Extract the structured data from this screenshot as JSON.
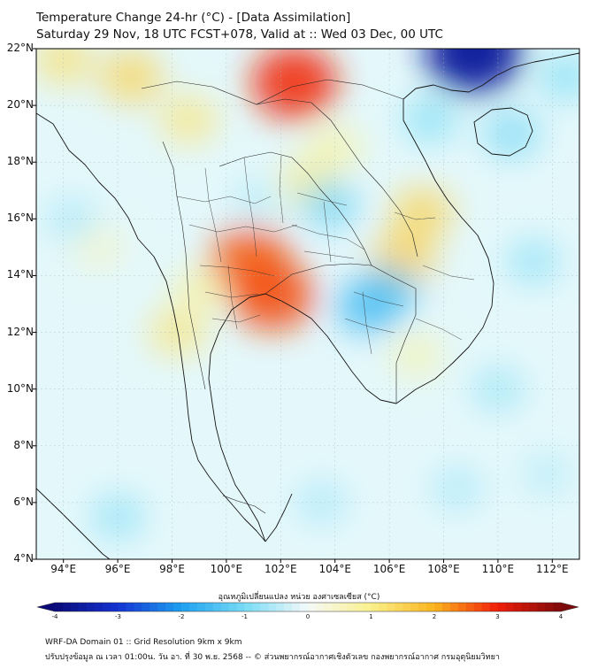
{
  "header": {
    "title_line1": "Temperature Change 24-hr (°C) - [Data Assimilation]",
    "title_line2": "Saturday 29 Nov, 18 UTC FCST+078, Valid at :: Wed 03 Dec, 00 UTC"
  },
  "map": {
    "lat_labels": [
      {
        "value": 22,
        "label": "22°N"
      },
      {
        "value": 20,
        "label": "20°N"
      },
      {
        "value": 18,
        "label": "18°N"
      },
      {
        "value": 16,
        "label": "16°N"
      },
      {
        "value": 14,
        "label": "14°N"
      },
      {
        "value": 12,
        "label": "12°N"
      },
      {
        "value": 10,
        "label": "10°N"
      },
      {
        "value": 8,
        "label": "8°N"
      },
      {
        "value": 6,
        "label": "6°N"
      },
      {
        "value": 4,
        "label": "4°N"
      }
    ],
    "lon_labels": [
      {
        "value": 94,
        "label": "94°E"
      },
      {
        "value": 96,
        "label": "96°E"
      },
      {
        "value": 98,
        "label": "98°E"
      },
      {
        "value": 100,
        "label": "100°E"
      },
      {
        "value": 102,
        "label": "102°E"
      },
      {
        "value": 104,
        "label": "104°E"
      },
      {
        "value": 106,
        "label": "106°E"
      },
      {
        "value": 108,
        "label": "108°E"
      },
      {
        "value": 110,
        "label": "110°E"
      },
      {
        "value": 112,
        "label": "112°E"
      }
    ],
    "lon_range": [
      93,
      113
    ],
    "lat_range": [
      4,
      22
    ],
    "gridlines": true,
    "field_anomalies": [
      {
        "lon": 102.5,
        "lat": 20.8,
        "value": 2.9
      },
      {
        "lon": 100.9,
        "lat": 14.5,
        "value": 2.6
      },
      {
        "lon": 101.7,
        "lat": 13.3,
        "value": 2.7
      },
      {
        "lon": 96.5,
        "lat": 21.0,
        "value": 1.5
      },
      {
        "lon": 98.6,
        "lat": 19.5,
        "value": 1.2
      },
      {
        "lon": 103.0,
        "lat": 17.3,
        "value": 1.1
      },
      {
        "lon": 98.2,
        "lat": 12.0,
        "value": 1.2
      },
      {
        "lon": 99.0,
        "lat": 13.5,
        "value": 0.9
      },
      {
        "lon": 94.0,
        "lat": 21.6,
        "value": 1.3
      },
      {
        "lon": 95.3,
        "lat": 15.0,
        "value": 0.6
      },
      {
        "lon": 106.5,
        "lat": 14.6,
        "value": 1.6
      },
      {
        "lon": 107.2,
        "lat": 16.2,
        "value": 1.5
      },
      {
        "lon": 107.0,
        "lat": 11.2,
        "value": 0.8
      },
      {
        "lon": 104.0,
        "lat": 18.5,
        "value": 0.9
      },
      {
        "lon": 109.1,
        "lat": 21.9,
        "value": -3.6
      },
      {
        "lon": 110.5,
        "lat": 19.0,
        "value": -1.1
      },
      {
        "lon": 107.5,
        "lat": 19.5,
        "value": -1.0
      },
      {
        "lon": 103.8,
        "lat": 16.5,
        "value": -1.2
      },
      {
        "lon": 105.2,
        "lat": 12.9,
        "value": -1.6
      },
      {
        "lon": 105.9,
        "lat": 13.4,
        "value": -1.5
      },
      {
        "lon": 101.1,
        "lat": 16.7,
        "value": -0.6
      },
      {
        "lon": 94.3,
        "lat": 16.0,
        "value": -0.7
      },
      {
        "lon": 111.3,
        "lat": 14.5,
        "value": -0.9
      },
      {
        "lon": 110.0,
        "lat": 10.0,
        "value": -0.8
      },
      {
        "lon": 96.0,
        "lat": 5.5,
        "value": -0.9
      },
      {
        "lon": 103.5,
        "lat": 6.0,
        "value": -0.7
      },
      {
        "lon": 108.5,
        "lat": 6.5,
        "value": -0.7
      },
      {
        "lon": 111.8,
        "lat": 7.0,
        "value": -0.6
      },
      {
        "lon": 112.5,
        "lat": 21.0,
        "value": -1.0
      }
    ]
  },
  "colorbar": {
    "title": "อุณหภูมิเปลี่ยนแปลง หน่วย องศาเซลเซียส (°C)",
    "range": [
      -4,
      4
    ],
    "ticks": [
      "-4",
      "-3",
      "-2",
      "-1",
      "0",
      "1",
      "2",
      "3",
      "4"
    ],
    "colors": {
      "v-4": "#0a0a78",
      "v-3": "#1432d2",
      "v-2": "#1ea0f0",
      "v-1": "#78dcf5",
      "v0": "#f5fafa",
      "v1": "#faf08c",
      "v2": "#fab41e",
      "v3": "#f01e0a",
      "v4": "#7d0a0a"
    }
  },
  "footer": {
    "line1": "WRF-DA Domain 01 :: Grid Resolution 9km x 9km",
    "line2": "ปรับปรุงข้อมูล ณ เวลา 01:00น. วัน อา. ที่ 30 พ.ย. 2568 -- © ส่วนพยากรณ์อากาศเชิงตัวเลข กองพยากรณ์อากาศ กรมอุตุนิยมวิทยา"
  }
}
